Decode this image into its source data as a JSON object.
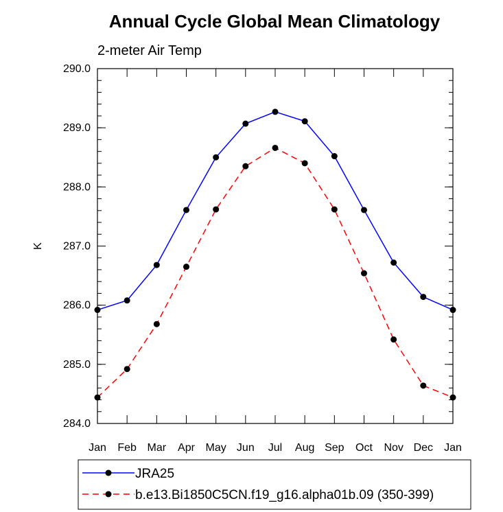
{
  "chart_data": {
    "type": "line",
    "title": "Annual Cycle Global Mean Climatology",
    "subtitle": "2-meter Air Temp",
    "xlabel": "",
    "ylabel": "K",
    "categories": [
      "Jan",
      "Feb",
      "Mar",
      "Apr",
      "May",
      "Jun",
      "Jul",
      "Aug",
      "Sep",
      "Oct",
      "Nov",
      "Dec",
      "Jan"
    ],
    "ylim": [
      284.0,
      290.0
    ],
    "yticks": [
      "284.0",
      "285.0",
      "286.0",
      "287.0",
      "288.0",
      "289.0",
      "290.0"
    ],
    "grid": false,
    "legend_position": "bottom",
    "series": [
      {
        "name": "JRA25",
        "color": "#0000ff",
        "line_style": "solid",
        "values": [
          285.92,
          286.08,
          286.68,
          287.61,
          288.5,
          289.07,
          289.27,
          289.11,
          288.52,
          287.61,
          286.72,
          286.14,
          285.92
        ]
      },
      {
        "name": "b.e13.Bi1850C5CN.f19_g16.alpha01b.09 (350-399)",
        "color": "#ff0000",
        "line_style": "dashed",
        "values": [
          284.44,
          284.92,
          285.68,
          286.65,
          287.62,
          288.35,
          288.66,
          288.4,
          287.62,
          286.54,
          285.42,
          284.64,
          284.44
        ]
      }
    ]
  }
}
